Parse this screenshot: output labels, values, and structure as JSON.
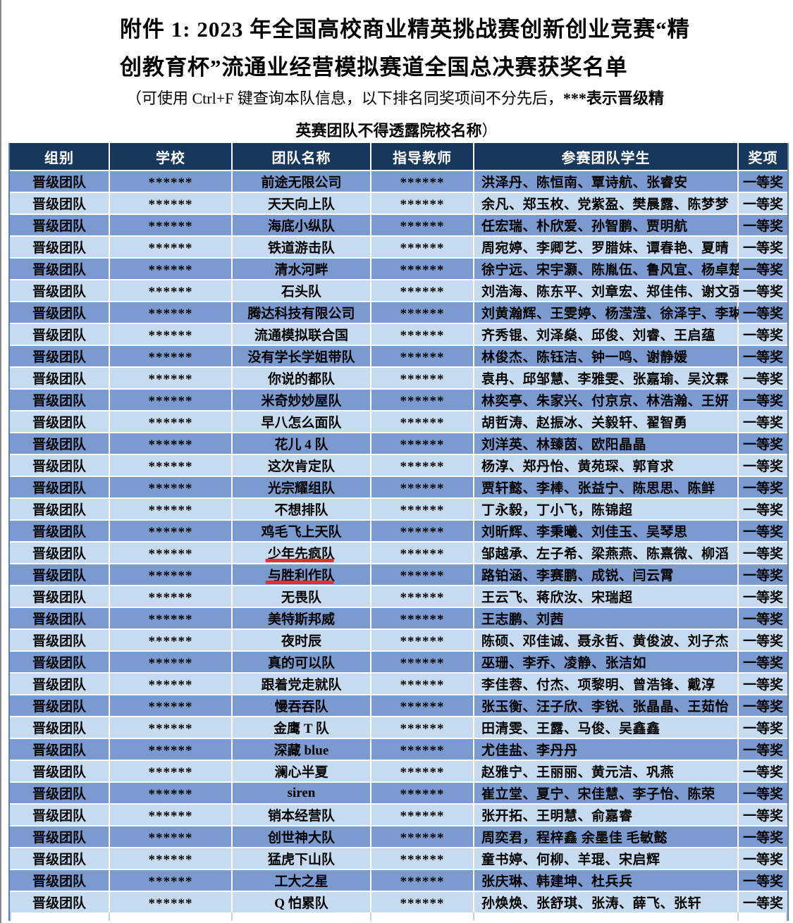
{
  "title": {
    "line1": "附件 1: 2023 年全国高校商业精英挑战赛创新创业竞赛“精",
    "line2": "创教育杯”流通业经营模拟赛道全国总决赛获奖名单"
  },
  "note": {
    "normal": "（可使用 Ctrl+F 键查询本队信息，以下排名同奖项间不分先后，",
    "bold_start": "***表示晋级精",
    "bold_end": "英赛团队不得透露院校名称",
    "close_paren": "）"
  },
  "table": {
    "headers": [
      "组别",
      "学校",
      "团队名称",
      "指导教师",
      "参赛团队学生",
      "奖项"
    ],
    "underlined_team_rows": [
      18,
      19
    ],
    "rows": [
      [
        "晋级团队",
        "******",
        "前途无限公司",
        "******",
        "洪泽丹、陈恒南、覃诗航、张睿安",
        "一等奖"
      ],
      [
        "晋级团队",
        "******",
        "天天向上队",
        "******",
        "余凡、郑玉枚、党紫盈、樊晨露、陈梦梦",
        "一等奖"
      ],
      [
        "晋级团队",
        "******",
        "海底小纵队",
        "******",
        "任宏瑞、朴欣爱、孙智鹏、贾明航",
        "一等奖"
      ],
      [
        "晋级团队",
        "******",
        "铁道游击队",
        "******",
        "周宛婷、李卿艺、罗腊妹、谭春艳、夏晴",
        "一等奖"
      ],
      [
        "晋级团队",
        "******",
        "清水河畔",
        "******",
        "徐宁远、宋宇灏、陈胤伍、鲁风宜、杨卓楚",
        "一等奖"
      ],
      [
        "晋级团队",
        "******",
        "石头队",
        "******",
        "刘浩海、陈东平、刘章宏、郑佳伟、谢文强",
        "一等奖"
      ],
      [
        "晋级团队",
        "******",
        "腾达科技有限公司",
        "******",
        "刘黄瀚辉、王雯婷、杨滢滢、徐泽宇、李琳",
        "一等奖"
      ],
      [
        "晋级团队",
        "******",
        "流通模拟联合国",
        "******",
        "齐秀锟、刘泽燊、邱俊、刘睿、王启蕴",
        "一等奖"
      ],
      [
        "晋级团队",
        "******",
        "没有学长学姐带队",
        "******",
        "林俊杰、陈钰洁、钟一鸣、谢静媛",
        "一等奖"
      ],
      [
        "晋级团队",
        "******",
        "你说的都队",
        "******",
        "袁冉、邱邹慧、李雅雯、张嘉瑜、吴汶霖",
        "一等奖"
      ],
      [
        "晋级团队",
        "******",
        "米奇妙妙屋队",
        "******",
        "林奕亭、朱家兴、付京京、林浩瀚、王妍",
        "一等奖"
      ],
      [
        "晋级团队",
        "******",
        "早八怎么面队",
        "******",
        "胡哲涛、赵振冰、关毅轩、翟智勇",
        "一等奖"
      ],
      [
        "晋级团队",
        "******",
        "花儿 4 队",
        "******",
        "刘洋英、林臻茵、欧阳晶晶",
        "一等奖"
      ],
      [
        "晋级团队",
        "******",
        "这次肯定队",
        "******",
        "杨淳、郑丹怡、黄苑琛、郭育求",
        "一等奖"
      ],
      [
        "晋级团队",
        "******",
        "光宗耀组队",
        "******",
        "贾轩懿、李棒、张益宁、陈思思、陈鲜",
        "一等奖"
      ],
      [
        "晋级团队",
        "******",
        "不想排队",
        "******",
        "丁永毅，丁小飞，陈锦超",
        "一等奖"
      ],
      [
        "晋级团队",
        "******",
        "鸡毛飞上天队",
        "******",
        "刘昕辉、李秉曦、刘佳玉、吴琴思",
        "一等奖"
      ],
      [
        "晋级团队",
        "******",
        "少年先疯队",
        "******",
        "邹越承、左子希、梁燕燕、陈熹微、柳滔",
        "一等奖"
      ],
      [
        "晋级团队",
        "******",
        "与胜利作队",
        "******",
        "路铂涵、李赛鹏、成锐、闫云霄",
        "一等奖"
      ],
      [
        "晋级团队",
        "******",
        "无畏队",
        "******",
        "王云飞、蒋欣汝、宋瑞超",
        "一等奖"
      ],
      [
        "晋级团队",
        "******",
        "美特斯邦威",
        "******",
        "王志鹏、刘茜",
        "一等奖"
      ],
      [
        "晋级团队",
        "******",
        "夜时辰",
        "******",
        "陈硕、邓佳诚、聂永哲、黄俊波、刘子杰",
        "一等奖"
      ],
      [
        "晋级团队",
        "******",
        "真的可以队",
        "******",
        "巫珊、李乔、凌静、张洁如",
        "一等奖"
      ],
      [
        "晋级团队",
        "******",
        "跟着党走就队",
        "******",
        "李佳蓉、付杰、项黎明、曾浩锋、戴淳",
        "一等奖"
      ],
      [
        "晋级团队",
        "******",
        "慢吞吞队",
        "******",
        "张玉衡、汪子欣、李锐、张晶晶、王茹怡",
        "一等奖"
      ],
      [
        "晋级团队",
        "******",
        "金鹰 T 队",
        "******",
        "田清雯、王露、马俊、吴鑫鑫",
        "一等奖"
      ],
      [
        "晋级团队",
        "******",
        "深藏 blue",
        "******",
        "尤佳盐、李丹丹",
        "一等奖"
      ],
      [
        "晋级团队",
        "******",
        "澜心半夏",
        "******",
        "赵雅宁、王丽丽、黄元洁、巩燕",
        "一等奖"
      ],
      [
        "晋级团队",
        "******",
        "siren",
        "******",
        "崔立堂、夏宁、宋佳慧、李子怡、陈荣",
        "一等奖"
      ],
      [
        "晋级团队",
        "******",
        "销本经营队",
        "******",
        "张开拓、王明慧、俞嘉睿",
        "一等奖"
      ],
      [
        "晋级团队",
        "******",
        "创世神大队",
        "******",
        "周奕君，程梓鑫 余墨佳 毛敏懿",
        "一等奖"
      ],
      [
        "晋级团队",
        "******",
        "猛虎下山队",
        "******",
        "童书婷、何柳、羊琨、宋启辉",
        "一等奖"
      ],
      [
        "晋级团队",
        "******",
        "工大之星",
        "******",
        "张庆琳、韩建坤、杜兵兵",
        "一等奖"
      ],
      [
        "晋级团队",
        "******",
        "Q 怕累队",
        "******",
        "孙焕焕、张舒琪、张涛、薛飞、张轩",
        "一等奖"
      ]
    ]
  },
  "colors": {
    "header_bg": "#17375D",
    "header_text": "#FFFFFF",
    "row_medium_blue": "#7A9AD0",
    "row_light_blue": "#C7DBF0",
    "cell_text": "#000000",
    "underline_red": "#E8302A"
  }
}
